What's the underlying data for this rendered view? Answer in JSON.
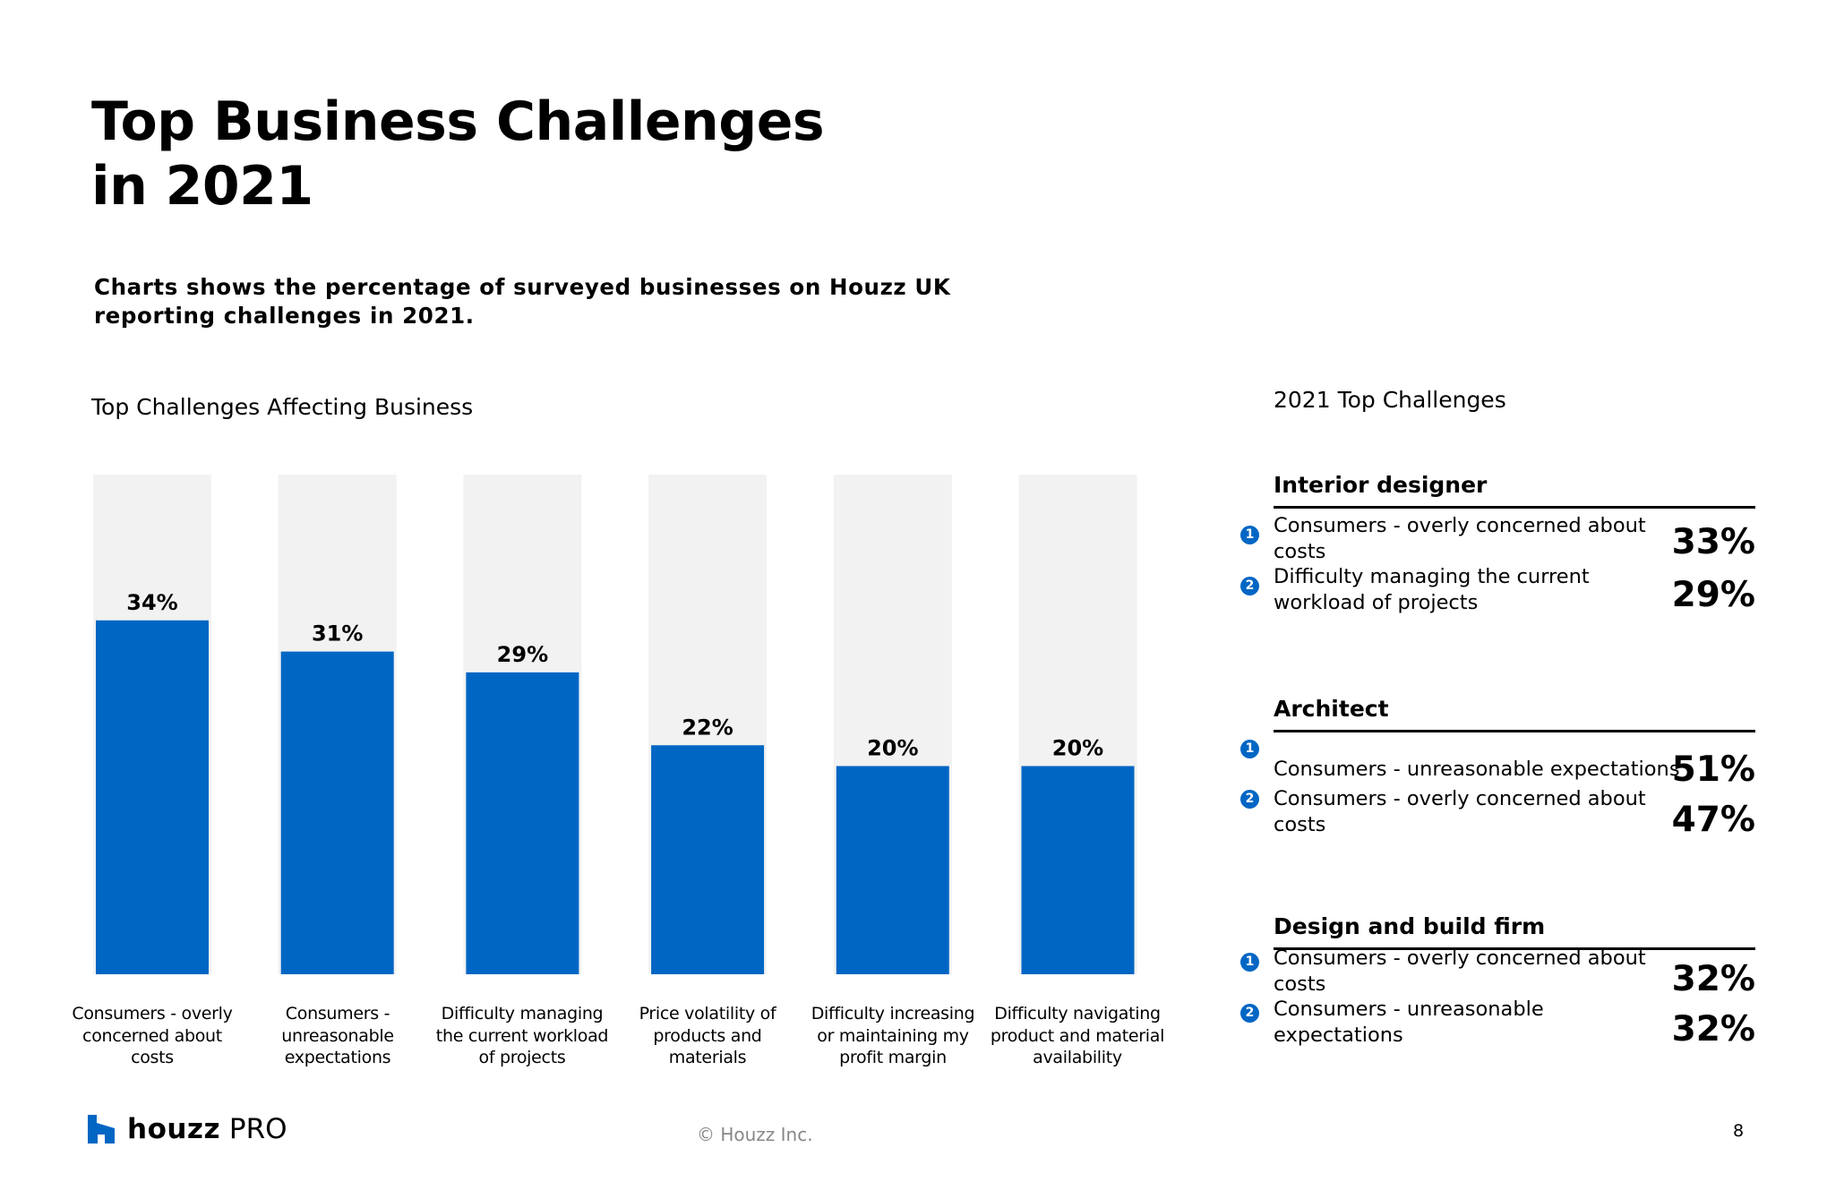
{
  "header": {
    "title": "Top Business Challenges in 2021",
    "subtitle": "Charts shows the percentage of surveyed businesses on Houzz UK reporting challenges in 2021."
  },
  "chart_data": {
    "type": "bar",
    "title": "Top Challenges Affecting Business",
    "categories": [
      "Consumers - overly concerned about costs",
      "Consumers - unreasonable expectations",
      "Difficulty managing the current workload of projects",
      "Price volatility of products and materials",
      "Difficulty increasing or maintaining my profit margin",
      "Difficulty navigating product and material availability"
    ],
    "values": [
      34,
      31,
      29,
      22,
      20,
      20
    ],
    "labels": [
      "34%",
      "31%",
      "29%",
      "22%",
      "20%",
      "20%"
    ],
    "ylim": [
      0,
      48
    ],
    "xlabel": "",
    "ylabel": "",
    "bar_color": "#0066c4",
    "background_color": "#f2f2f2"
  },
  "sidebar": {
    "title": "2021 Top Challenges",
    "groups": [
      {
        "heading": "Interior designer",
        "items": [
          {
            "rank": "1",
            "text": "Consumers - overly concerned about costs",
            "pct": "33%"
          },
          {
            "rank": "2",
            "text": "Difficulty managing the current workload of projects",
            "pct": "29%"
          }
        ]
      },
      {
        "heading": "Architect",
        "items": [
          {
            "rank": "1",
            "text": "Consumers - unreasonable expectations",
            "pct": "51%"
          },
          {
            "rank": "2",
            "text": "Consumers - overly concerned about costs",
            "pct": "47%"
          }
        ]
      },
      {
        "heading": "Design and build firm",
        "items": [
          {
            "rank": "1",
            "text": "Consumers - overly concerned about costs",
            "pct": "32%"
          },
          {
            "rank": "2",
            "text": "Consumers - unreasonable expectations",
            "pct": "32%"
          }
        ]
      }
    ]
  },
  "footer": {
    "brand": "houzz",
    "product": "PRO",
    "copyright": "© Houzz Inc.",
    "page_number": "8"
  },
  "colors": {
    "accent": "#0066c4",
    "track": "#f2f2f2",
    "muted_text": "#888888"
  }
}
